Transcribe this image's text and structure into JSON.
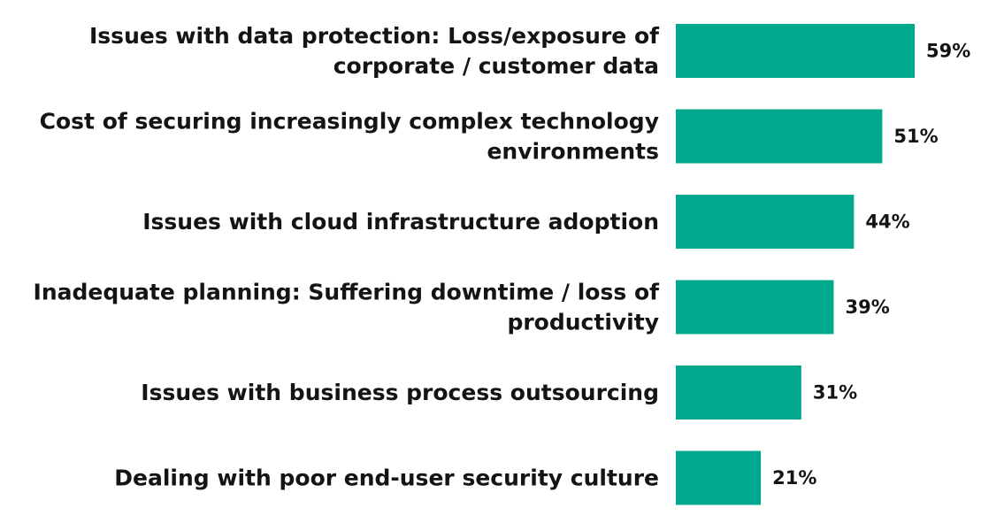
{
  "chart_data": {
    "type": "bar",
    "orientation": "horizontal",
    "categories": [
      [
        "Issues with data protection: Loss/exposure of",
        "corporate / customer data"
      ],
      [
        "Cost of securing increasingly complex technology",
        "environments"
      ],
      [
        "Issues with cloud infrastructure adoption"
      ],
      [
        "Inadequate planning: Suffering downtime / loss of",
        "productivity"
      ],
      [
        "Issues with business process outsourcing"
      ],
      [
        "Dealing with poor end-user security culture"
      ]
    ],
    "values": [
      59,
      51,
      44,
      39,
      31,
      21
    ],
    "value_labels": [
      "59%",
      "51%",
      "44%",
      "39%",
      "31%",
      "21%"
    ],
    "unit": "%",
    "title": "",
    "xlabel": "",
    "ylabel": "",
    "xlim": [
      0,
      59
    ],
    "grid": false,
    "legend": "none",
    "colors": {
      "bar": "#00A88E",
      "text": "#141414",
      "background": "#FFFFFF"
    }
  }
}
